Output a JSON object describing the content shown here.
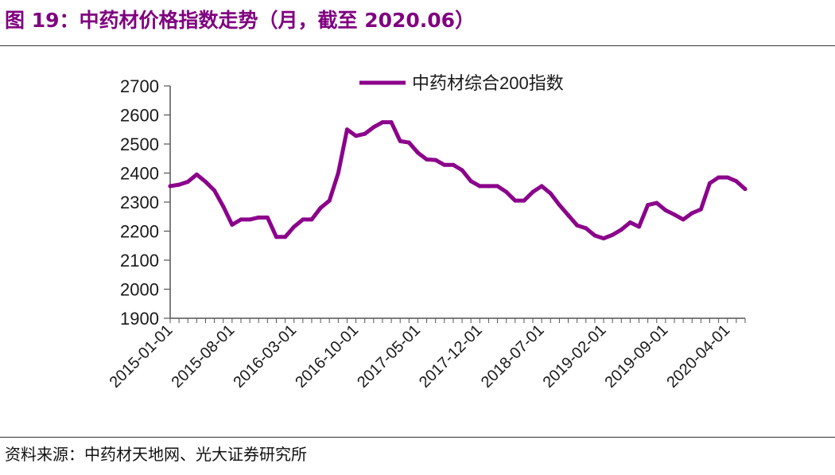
{
  "figure": {
    "title": "图 19：中药材价格指数走势（月，截至 2020.06）",
    "source": "资料来源：中药材天地网、光大证券研究所"
  },
  "colors": {
    "title": "#800080",
    "series": "#8B008B",
    "axis": "#555555"
  },
  "chart_data": {
    "type": "line",
    "title": "",
    "xlabel": "",
    "ylabel": "",
    "ylim": [
      1900,
      2700
    ],
    "yticks": [
      1900,
      2000,
      2100,
      2200,
      2300,
      2400,
      2500,
      2600,
      2700
    ],
    "xtick_labels": [
      "2015-01-01",
      "2015-08-01",
      "2016-03-01",
      "2016-10-01",
      "2017-05-01",
      "2017-12-01",
      "2018-07-01",
      "2019-02-01",
      "2019-09-01",
      "2020-04-01"
    ],
    "grid": false,
    "legend": "top-center",
    "x": [
      "2015-01",
      "2015-02",
      "2015-03",
      "2015-04",
      "2015-05",
      "2015-06",
      "2015-07",
      "2015-08",
      "2015-09",
      "2015-10",
      "2015-11",
      "2015-12",
      "2016-01",
      "2016-02",
      "2016-03",
      "2016-04",
      "2016-05",
      "2016-06",
      "2016-07",
      "2016-08",
      "2016-09",
      "2016-10",
      "2016-11",
      "2016-12",
      "2017-01",
      "2017-02",
      "2017-03",
      "2017-04",
      "2017-05",
      "2017-06",
      "2017-07",
      "2017-08",
      "2017-09",
      "2017-10",
      "2017-11",
      "2017-12",
      "2018-01",
      "2018-02",
      "2018-03",
      "2018-04",
      "2018-05",
      "2018-06",
      "2018-07",
      "2018-08",
      "2018-09",
      "2018-10",
      "2018-11",
      "2018-12",
      "2019-01",
      "2019-02",
      "2019-03",
      "2019-04",
      "2019-05",
      "2019-06",
      "2019-07",
      "2019-08",
      "2019-09",
      "2019-10",
      "2019-11",
      "2019-12",
      "2020-01",
      "2020-02",
      "2020-03",
      "2020-04",
      "2020-05",
      "2020-06"
    ],
    "series": [
      {
        "name": "中药材综合200指数",
        "values": [
          2355,
          2360,
          2370,
          2395,
          2370,
          2340,
          2285,
          2222,
          2240,
          2240,
          2247,
          2247,
          2180,
          2180,
          2215,
          2240,
          2240,
          2280,
          2305,
          2400,
          2550,
          2528,
          2535,
          2558,
          2575,
          2575,
          2510,
          2505,
          2470,
          2447,
          2445,
          2428,
          2428,
          2410,
          2372,
          2355,
          2355,
          2355,
          2335,
          2305,
          2305,
          2335,
          2355,
          2330,
          2290,
          2255,
          2220,
          2210,
          2185,
          2175,
          2187,
          2205,
          2230,
          2215,
          2290,
          2297,
          2272,
          2257,
          2240,
          2262,
          2275,
          2365,
          2385,
          2385,
          2372,
          2345
        ]
      }
    ]
  }
}
